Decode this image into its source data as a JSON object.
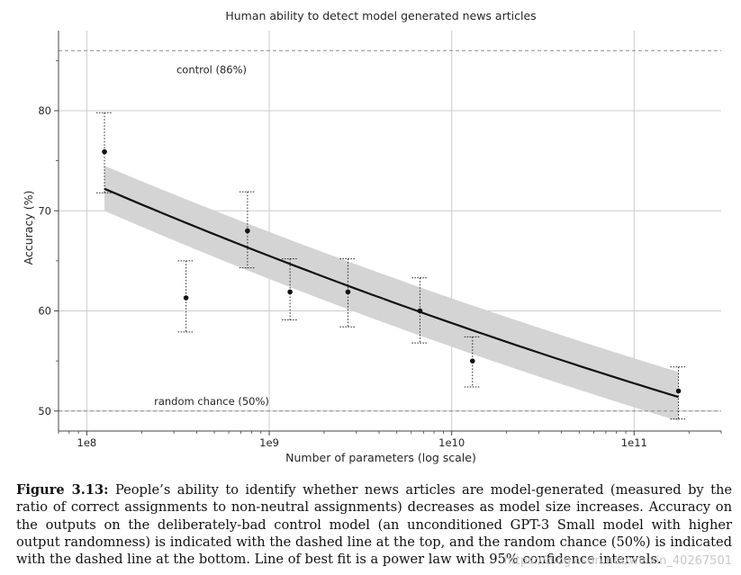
{
  "chart_data": {
    "type": "scatter",
    "title": "Human ability to detect model generated news articles",
    "xlabel": "Number of parameters (log scale)",
    "ylabel": "Accuracy (%)",
    "x_scale": "log",
    "xlim": [
      70000000,
      300000000000
    ],
    "ylim": [
      48,
      88
    ],
    "x_ticks": [
      {
        "value": 100000000,
        "label": "1e8"
      },
      {
        "value": 1000000000,
        "label": "1e9"
      },
      {
        "value": 10000000000,
        "label": "1e10"
      },
      {
        "value": 100000000000,
        "label": "1e11"
      }
    ],
    "y_ticks": [
      50,
      60,
      70,
      80
    ],
    "grid": true,
    "points": [
      {
        "x": 125000000,
        "y": 75.9,
        "err_low": 71.8,
        "err_high": 79.8
      },
      {
        "x": 350000000,
        "y": 61.3,
        "err_low": 57.9,
        "err_high": 65.0
      },
      {
        "x": 760000000,
        "y": 68.0,
        "err_low": 64.3,
        "err_high": 71.9
      },
      {
        "x": 1300000000,
        "y": 61.9,
        "err_low": 59.1,
        "err_high": 65.2
      },
      {
        "x": 2700000000,
        "y": 61.9,
        "err_low": 58.4,
        "err_high": 65.2
      },
      {
        "x": 6700000000,
        "y": 60.0,
        "err_low": 56.8,
        "err_high": 63.3
      },
      {
        "x": 13000000000,
        "y": 55.0,
        "err_low": 52.4,
        "err_high": 57.4
      },
      {
        "x": 175000000000,
        "y": 52.0,
        "err_low": 49.2,
        "err_high": 54.4
      }
    ],
    "fit": {
      "type": "power_law",
      "x": [
        125000000,
        175000000000
      ],
      "y": [
        72.2,
        51.4
      ],
      "ci_low": [
        70.0,
        49.0
      ],
      "ci_high": [
        74.5,
        53.9
      ]
    },
    "reference_lines": [
      {
        "y": 86,
        "label": "control (86%)"
      },
      {
        "y": 50,
        "label": "random chance (50%)"
      }
    ]
  },
  "caption": {
    "label": "Figure 3.13:",
    "text": " People’s ability to identify whether news articles are model-generated (measured by the ratio of correct assignments to non-neutral assignments) decreases as model size increases. Accuracy on the outputs on the deliberately-bad control model (an unconditioned GPT-3 Small model with higher output randomness) is indicated with the dashed line at the top, and the random chance (50%) is indicated with the dashed line at the bottom. Line of best fit is a power law with 95% confidence intervals."
  },
  "watermark": "https://blog.csdn.net/weixin_40267501",
  "colors": {
    "grid": "#cccccc",
    "band": "#d4d4d4",
    "fit_line": "#111111",
    "points": "#111111",
    "reference_line": "#8a8a8a"
  }
}
